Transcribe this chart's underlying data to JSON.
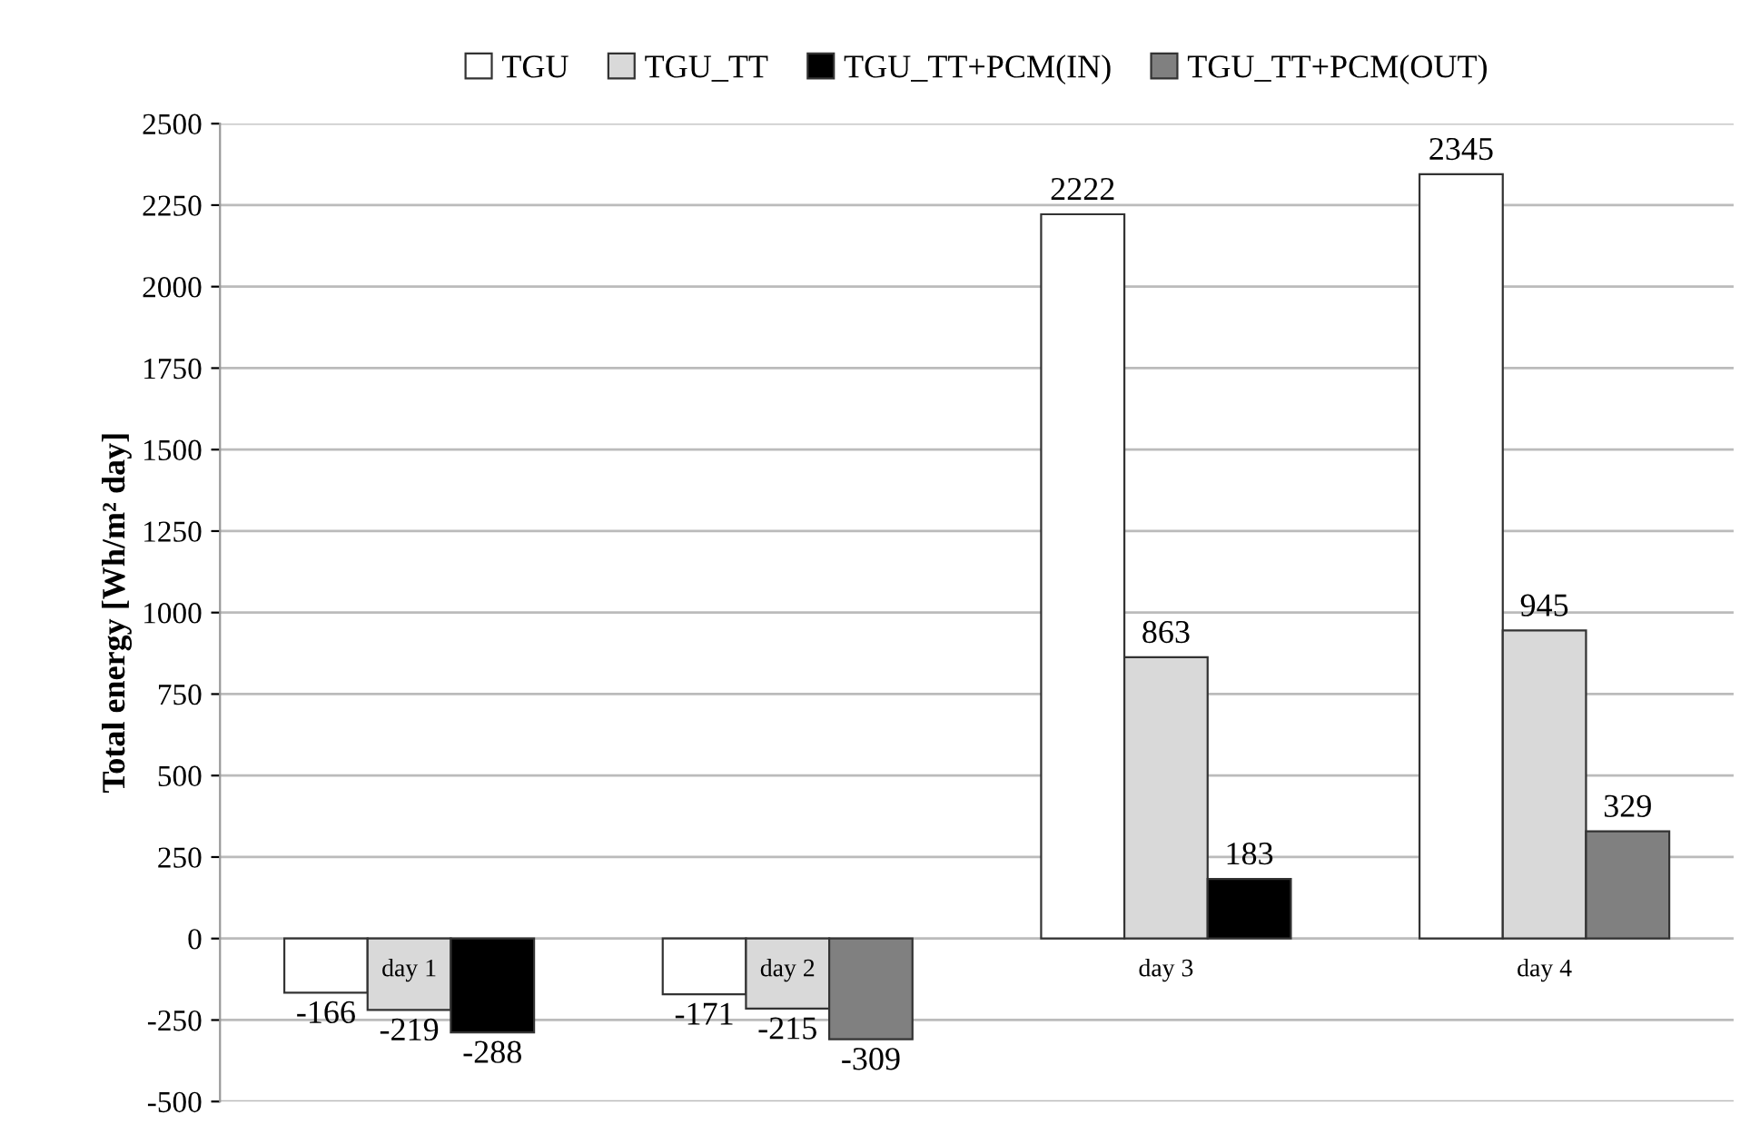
{
  "chart_data": {
    "type": "bar",
    "ylabel": "Total energy [Wh/m² day]",
    "categories": [
      "day 1",
      "day 2",
      "day 3",
      "day 4"
    ],
    "series": [
      {
        "name": "TGU",
        "color": "#ffffff",
        "values": [
          -166,
          -171,
          2222,
          2345
        ]
      },
      {
        "name": "TGU_TT",
        "color": "#d9d9d9",
        "values": [
          -219,
          -215,
          863,
          945
        ]
      },
      {
        "name": "TGU_TT+PCM(IN)",
        "color": "#000000",
        "values": [
          -288,
          null,
          183,
          null
        ]
      },
      {
        "name": "TGU_TT+PCM(OUT)",
        "color": "#808080",
        "values": [
          null,
          -309,
          null,
          329
        ]
      }
    ],
    "ylim": [
      -500,
      2500
    ],
    "yticks": [
      -500,
      -250,
      0,
      250,
      500,
      750,
      1000,
      1250,
      1500,
      1750,
      2000,
      2250,
      2500
    ],
    "grid": "y",
    "legend": "top",
    "data_labels": true
  }
}
